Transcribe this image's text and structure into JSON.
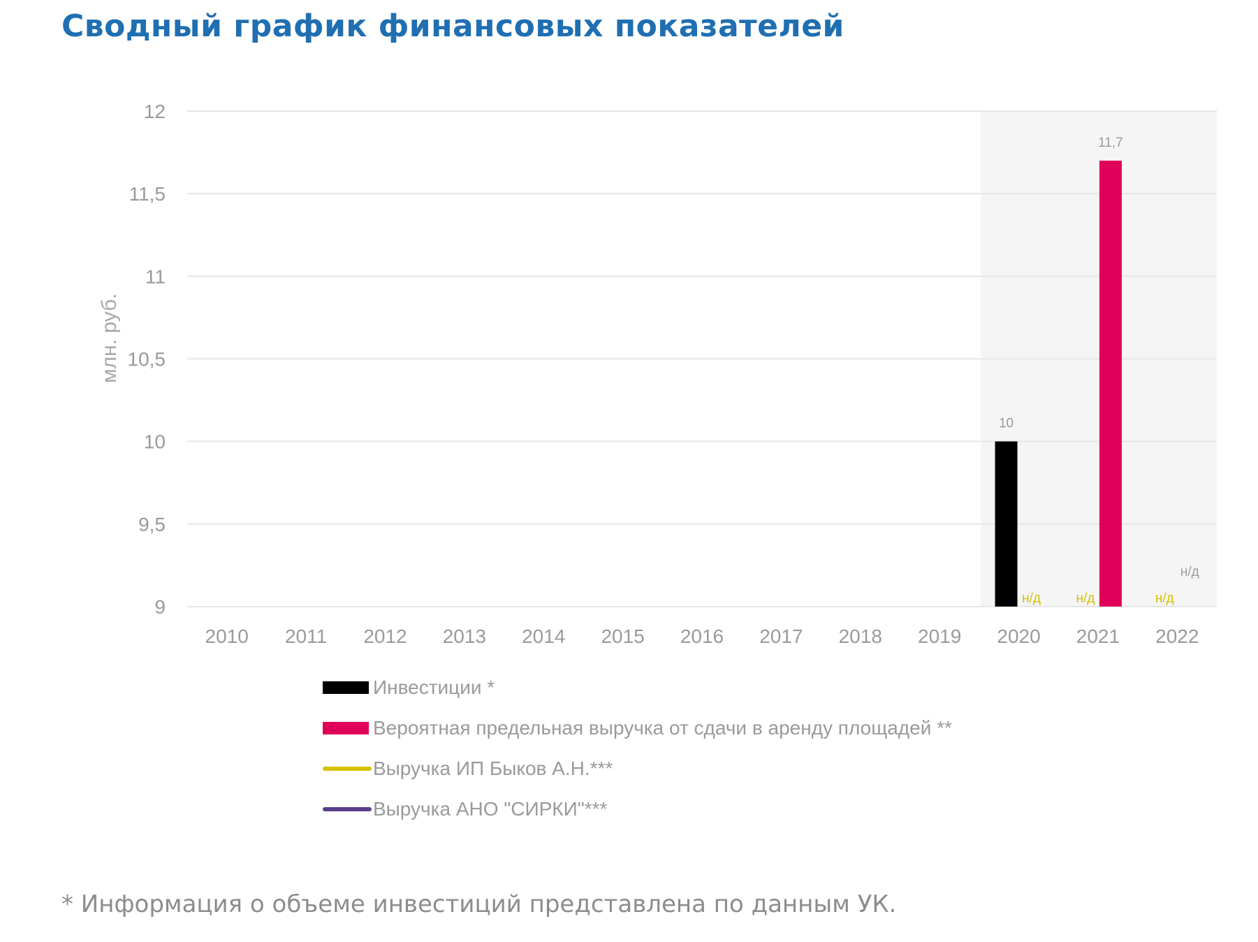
{
  "title": "Сводный график финансовых показателей",
  "footnote": "* Информация о объеме инвестиций представлена по данным УК.",
  "colors": {
    "title": "#1f6fb2",
    "investments": "#000000",
    "revenue_potential": "#e0005a",
    "revenue_ip": "#d4c200",
    "revenue_ano": "#5b3f8c",
    "highlight_band": "#f5f5f5",
    "grid": "#e6e6e6",
    "axis_text": "#9a9a9a"
  },
  "chart_data": {
    "type": "bar",
    "ylabel": "млн. руб.",
    "ylim": [
      9,
      12
    ],
    "yticks": [
      "9",
      "9,5",
      "10",
      "10,5",
      "11",
      "11,5",
      "12"
    ],
    "ytick_values": [
      9,
      9.5,
      10,
      10.5,
      11,
      11.5,
      12
    ],
    "categories": [
      "2010",
      "2011",
      "2012",
      "2013",
      "2014",
      "2015",
      "2016",
      "2017",
      "2018",
      "2019",
      "2020",
      "2021",
      "2022"
    ],
    "highlight_categories": [
      "2020",
      "2021",
      "2022"
    ],
    "grid": true,
    "legend_position": "bottom",
    "series": [
      {
        "name": "Инвестиции *",
        "kind": "bar",
        "color": "#000000",
        "values": [
          null,
          null,
          null,
          null,
          null,
          null,
          null,
          null,
          null,
          null,
          10,
          null,
          null
        ]
      },
      {
        "name": "Вероятная предельная выручка от сдачи в аренду площадей **",
        "kind": "bar",
        "color": "#e0005a",
        "values": [
          null,
          null,
          null,
          null,
          null,
          null,
          null,
          null,
          null,
          null,
          null,
          11.7,
          null
        ]
      },
      {
        "name": "Выручка ИП Быков А.Н.***",
        "kind": "line",
        "color": "#d4c200",
        "values": [
          null,
          null,
          null,
          null,
          null,
          null,
          null,
          null,
          null,
          null,
          null,
          null,
          null
        ]
      },
      {
        "name": "Выручка АНО \"СИРКИ\"***",
        "kind": "line",
        "color": "#5b3f8c",
        "values": [
          null,
          null,
          null,
          null,
          null,
          null,
          null,
          null,
          null,
          null,
          null,
          null,
          null
        ]
      }
    ],
    "data_labels": [
      {
        "category": "2020",
        "series": 0,
        "text": "10",
        "value": 10,
        "color": "#9a9a9a"
      },
      {
        "category": "2021",
        "series": 1,
        "text": "11,7",
        "value": 11.7,
        "color": "#9a9a9a"
      }
    ],
    "na_labels": [
      {
        "category": "2020",
        "series": 1,
        "text": "н/д",
        "color": "#d4c200"
      },
      {
        "category": "2021",
        "series": 0,
        "text": "н/д",
        "color": "#d4c200"
      },
      {
        "category": "2022",
        "series": 0,
        "text": "н/д",
        "color": "#d4c200"
      },
      {
        "category": "2022",
        "series": 1,
        "text": "н/д",
        "color": "#9a9a9a",
        "raised": true
      }
    ]
  }
}
